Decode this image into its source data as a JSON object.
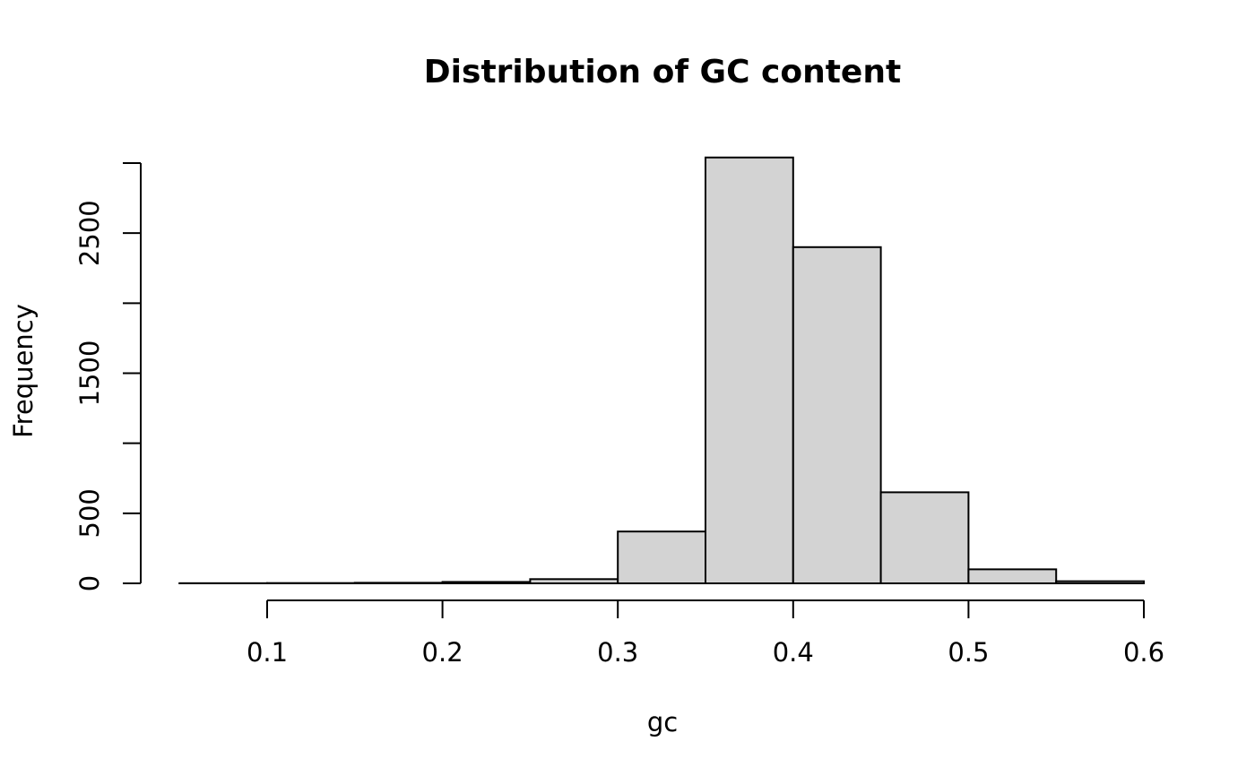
{
  "chart_data": {
    "type": "bar",
    "title": "Distribution of GC content",
    "xlabel": "gc",
    "ylabel": "Frequency",
    "bins": [
      {
        "start": 0.05,
        "end": 0.1,
        "count": 1
      },
      {
        "start": 0.1,
        "end": 0.15,
        "count": 2
      },
      {
        "start": 0.15,
        "end": 0.2,
        "count": 4
      },
      {
        "start": 0.2,
        "end": 0.25,
        "count": 10
      },
      {
        "start": 0.25,
        "end": 0.3,
        "count": 30
      },
      {
        "start": 0.3,
        "end": 0.35,
        "count": 370
      },
      {
        "start": 0.35,
        "end": 0.4,
        "count": 3040
      },
      {
        "start": 0.4,
        "end": 0.45,
        "count": 2400
      },
      {
        "start": 0.45,
        "end": 0.5,
        "count": 650
      },
      {
        "start": 0.5,
        "end": 0.55,
        "count": 100
      },
      {
        "start": 0.55,
        "end": 0.6,
        "count": 15
      }
    ],
    "x_ticks": [
      "0.1",
      "0.2",
      "0.3",
      "0.4",
      "0.5",
      "0.6"
    ],
    "y_tick_values": [
      0,
      500,
      1000,
      1500,
      2000,
      2500,
      3000
    ],
    "y_tick_labels": [
      "0",
      "500",
      "",
      "1500",
      "",
      "2500",
      ""
    ],
    "xlim": [
      0.05,
      0.6
    ],
    "ylim": [
      0,
      3000
    ],
    "grid": false,
    "bar_fill": "#d3d3d3",
    "bar_stroke": "#000000"
  }
}
